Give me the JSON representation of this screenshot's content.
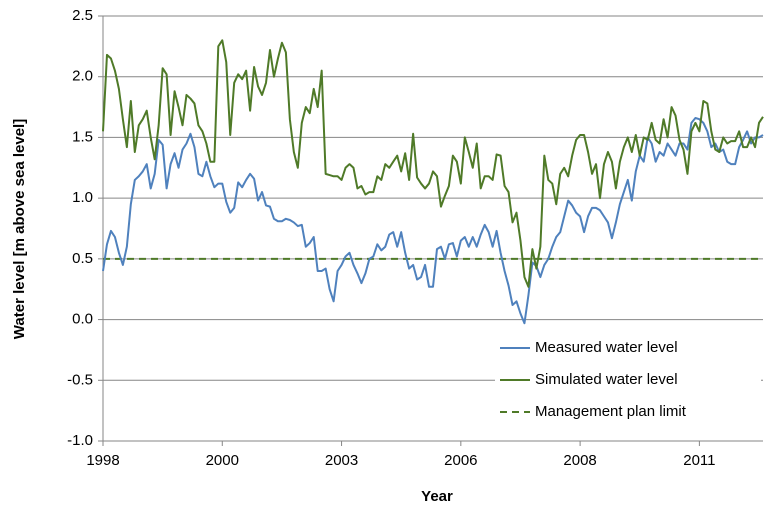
{
  "chart_data": {
    "type": "line",
    "x_label": "Year",
    "y_label": "Water level [m above sea level]",
    "categories": [
      "1998",
      null,
      null,
      null,
      null,
      null,
      null,
      null,
      null,
      null,
      null,
      null,
      null,
      null,
      null,
      null,
      null,
      null,
      null,
      null,
      null,
      null,
      null,
      null,
      null,
      null,
      null,
      null,
      null,
      null,
      "2000",
      null,
      null,
      null,
      null,
      null,
      null,
      null,
      null,
      null,
      null,
      null,
      null,
      null,
      null,
      null,
      null,
      null,
      null,
      null,
      null,
      null,
      null,
      null,
      null,
      null,
      null,
      null,
      null,
      null,
      "2003",
      null,
      null,
      null,
      null,
      null,
      null,
      null,
      null,
      null,
      null,
      null,
      null,
      null,
      null,
      null,
      null,
      null,
      null,
      null,
      null,
      null,
      null,
      null,
      null,
      null,
      null,
      null,
      null,
      null,
      "2006",
      null,
      null,
      null,
      null,
      null,
      null,
      null,
      null,
      null,
      null,
      null,
      null,
      null,
      null,
      null,
      null,
      null,
      null,
      null,
      null,
      null,
      null,
      null,
      null,
      null,
      null,
      null,
      null,
      null,
      "2008",
      null,
      null,
      null,
      null,
      null,
      null,
      null,
      null,
      null,
      null,
      null,
      null,
      null,
      null,
      null,
      null,
      null,
      null,
      null,
      null,
      null,
      null,
      null,
      null,
      null,
      null,
      null,
      null,
      null,
      "2011",
      null,
      null,
      null,
      null,
      null,
      null,
      null,
      null,
      null,
      null,
      null,
      null,
      null,
      null,
      null,
      null
    ],
    "series": [
      {
        "name": "Measured water level",
        "color": "#4f81bd",
        "values": [
          0.4,
          0.62,
          0.73,
          0.68,
          0.55,
          0.45,
          0.6,
          0.95,
          1.15,
          1.18,
          1.22,
          1.28,
          1.08,
          1.2,
          1.48,
          1.44,
          1.08,
          1.28,
          1.37,
          1.25,
          1.4,
          1.45,
          1.53,
          1.42,
          1.2,
          1.18,
          1.3,
          1.18,
          1.09,
          1.12,
          1.12,
          0.97,
          0.88,
          0.92,
          1.13,
          1.09,
          1.15,
          1.2,
          1.16,
          0.98,
          1.05,
          0.94,
          0.93,
          0.83,
          0.81,
          0.81,
          0.83,
          0.82,
          0.8,
          0.77,
          0.78,
          0.6,
          0.63,
          0.68,
          0.4,
          0.4,
          0.42,
          0.25,
          0.15,
          0.4,
          0.45,
          0.52,
          0.55,
          0.45,
          0.38,
          0.3,
          0.38,
          0.5,
          0.52,
          0.62,
          0.57,
          0.6,
          0.7,
          0.72,
          0.6,
          0.72,
          0.55,
          0.42,
          0.45,
          0.33,
          0.35,
          0.45,
          0.27,
          0.27,
          0.58,
          0.6,
          0.5,
          0.62,
          0.63,
          0.52,
          0.65,
          0.68,
          0.6,
          0.68,
          0.6,
          0.7,
          0.78,
          0.72,
          0.6,
          0.73,
          0.55,
          0.4,
          0.28,
          0.12,
          0.15,
          0.05,
          -0.03,
          0.2,
          0.47,
          0.44,
          0.35,
          0.45,
          0.5,
          0.6,
          0.68,
          0.72,
          0.85,
          0.98,
          0.94,
          0.88,
          0.85,
          0.72,
          0.85,
          0.92,
          0.92,
          0.9,
          0.85,
          0.8,
          0.67,
          0.8,
          0.95,
          1.05,
          1.15,
          0.98,
          1.22,
          1.35,
          1.3,
          1.5,
          1.45,
          1.3,
          1.38,
          1.35,
          1.45,
          1.4,
          1.35,
          1.45,
          1.45,
          1.4,
          1.62,
          1.66,
          1.65,
          1.62,
          1.55,
          1.42,
          1.45,
          1.38,
          1.4,
          1.3,
          1.28,
          1.28,
          1.42,
          1.48,
          1.55,
          1.45,
          1.5,
          1.5,
          1.52
        ]
      },
      {
        "name": "Simulated water level",
        "color": "#4f7a28",
        "values": [
          1.55,
          2.18,
          2.15,
          2.05,
          1.9,
          1.65,
          1.42,
          1.8,
          1.38,
          1.6,
          1.65,
          1.72,
          1.5,
          1.32,
          1.6,
          2.07,
          2.02,
          1.52,
          1.88,
          1.75,
          1.6,
          1.85,
          1.82,
          1.78,
          1.6,
          1.55,
          1.45,
          1.3,
          1.3,
          2.25,
          2.3,
          2.12,
          1.52,
          1.95,
          2.02,
          1.98,
          2.05,
          1.72,
          2.08,
          1.92,
          1.85,
          1.95,
          2.22,
          2.0,
          2.15,
          2.28,
          2.2,
          1.65,
          1.38,
          1.25,
          1.62,
          1.75,
          1.7,
          1.9,
          1.75,
          2.05,
          1.2,
          1.19,
          1.18,
          1.18,
          1.15,
          1.25,
          1.28,
          1.25,
          1.08,
          1.1,
          1.03,
          1.05,
          1.05,
          1.18,
          1.15,
          1.28,
          1.25,
          1.3,
          1.35,
          1.22,
          1.37,
          1.15,
          1.53,
          1.17,
          1.12,
          1.08,
          1.12,
          1.22,
          1.18,
          0.93,
          1.02,
          1.1,
          1.35,
          1.3,
          1.12,
          1.5,
          1.38,
          1.25,
          1.45,
          1.08,
          1.18,
          1.18,
          1.15,
          1.36,
          1.35,
          1.1,
          1.05,
          0.8,
          0.88,
          0.65,
          0.35,
          0.27,
          0.58,
          0.42,
          0.6,
          1.35,
          1.15,
          1.12,
          0.95,
          1.2,
          1.25,
          1.18,
          1.35,
          1.48,
          1.52,
          1.52,
          1.38,
          1.2,
          1.28,
          1.0,
          1.28,
          1.38,
          1.3,
          1.08,
          1.3,
          1.42,
          1.5,
          1.38,
          1.52,
          1.35,
          1.5,
          1.48,
          1.62,
          1.48,
          1.45,
          1.65,
          1.5,
          1.75,
          1.68,
          1.48,
          1.4,
          1.2,
          1.55,
          1.62,
          1.55,
          1.8,
          1.78,
          1.55,
          1.4,
          1.38,
          1.5,
          1.45,
          1.47,
          1.47,
          1.55,
          1.42,
          1.42,
          1.5,
          1.42,
          1.62,
          1.67
        ]
      }
    ],
    "hlines": [
      {
        "name": "Management plan limit",
        "color": "#4f7a28",
        "value": 0.5,
        "dashed": true
      }
    ],
    "ylim": [
      -1.0,
      2.5
    ],
    "yticks": [
      {
        "value": -1.0,
        "label": "-1.0"
      },
      -0.5,
      {
        "value": 0.0,
        "label": "0.0"
      },
      0.5,
      {
        "value": 1.0,
        "label": "1.0"
      },
      1.5,
      {
        "value": 2.0,
        "label": "2.0"
      },
      2.5
    ],
    "grid": true,
    "legend": "lower-right"
  }
}
